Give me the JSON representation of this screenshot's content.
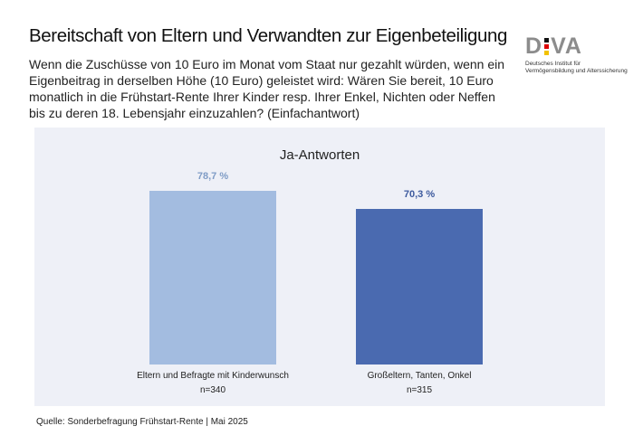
{
  "header": {
    "title": "Bereitschaft von Eltern und Verwandten zur Eigenbeteiligung",
    "question": "Wenn die Zuschüsse von 10 Euro im Monat vom Staat nur gezahlt würden, wenn ein Eigenbeitrag in derselben Höhe (10 Euro) geleistet wird: Wären Sie bereit, 10 Euro monatlich in die Frühstart-Rente Ihrer Kinder resp. Ihrer Enkel, Nichten oder Neffen bis zu deren 18. Lebensjahr einzuzahlen? (Einfachantwort)"
  },
  "logo": {
    "text": "DIVA",
    "line1": "Deutsches Institut für",
    "line2": "Vermögensbildung und Alterssicherung"
  },
  "chart_data": {
    "type": "bar",
    "title": "Ja-Antworten",
    "ylim": [
      0,
      100
    ],
    "categories": [
      "Eltern und Befragte mit Kinderwunsch",
      "Großeltern, Tanten, Onkel"
    ],
    "n": [
      "n=340",
      "n=315"
    ],
    "values": [
      78.7,
      70.3
    ],
    "value_labels": [
      "78,7 %",
      "70,3 %"
    ],
    "colors": [
      "#a3bce0",
      "#4a6ab0"
    ],
    "label_colors": [
      "#7f9cc6",
      "#3d5a9e"
    ]
  },
  "footer": {
    "source": "Quelle: Sonderbefragung Frühstart-Rente | Mai 2025"
  }
}
